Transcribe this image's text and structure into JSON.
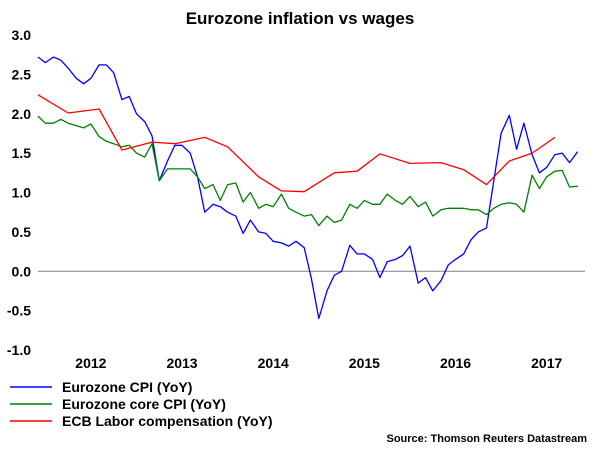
{
  "chart_data": {
    "type": "line",
    "title": "Eurozone inflation vs wages",
    "source": "Source: Thomson Reuters Datastream",
    "xlim": [
      2011.5,
      2017.5
    ],
    "ylim": [
      -1.0,
      3.0
    ],
    "yticks": [
      "3.0",
      "2.5",
      "2.0",
      "1.5",
      "1.0",
      "0.5",
      "0.0",
      "-0.5",
      "-1.0"
    ],
    "ytick_values": [
      3.0,
      2.5,
      2.0,
      1.5,
      1.0,
      0.5,
      0.0,
      -0.5,
      -1.0
    ],
    "xticks": [
      "2012",
      "2013",
      "2014",
      "2015",
      "2016",
      "2017"
    ],
    "xtick_values": [
      2012.0,
      2013.0,
      2014.0,
      2015.0,
      2016.0,
      2017.0
    ],
    "zero_line": true,
    "legend_position": "bottom-left",
    "series": [
      {
        "name": "Eurozone CPI (YoY)",
        "color": "#0000ff",
        "x": [
          2011.5,
          2011.58,
          2011.67,
          2011.75,
          2011.83,
          2011.92,
          2012.0,
          2012.08,
          2012.17,
          2012.25,
          2012.33,
          2012.42,
          2012.5,
          2012.58,
          2012.67,
          2012.75,
          2012.83,
          2012.92,
          2013.0,
          2013.08,
          2013.17,
          2013.25,
          2013.33,
          2013.42,
          2013.5,
          2013.58,
          2013.67,
          2013.75,
          2013.83,
          2013.92,
          2014.0,
          2014.08,
          2014.17,
          2014.25,
          2014.33,
          2014.42,
          2014.5,
          2014.58,
          2014.67,
          2014.75,
          2014.83,
          2014.92,
          2015.0,
          2015.08,
          2015.17,
          2015.25,
          2015.33,
          2015.42,
          2015.5,
          2015.58,
          2015.67,
          2015.75,
          2015.83,
          2015.92,
          2016.0,
          2016.08,
          2016.17,
          2016.25,
          2016.33,
          2016.42,
          2016.5,
          2016.58,
          2016.67,
          2016.75,
          2016.83,
          2016.92,
          2017.0,
          2017.08,
          2017.17,
          2017.25,
          2017.33,
          2017.42
        ],
        "values": [
          2.72,
          2.65,
          2.72,
          2.68,
          2.58,
          2.45,
          2.38,
          2.45,
          2.62,
          2.62,
          2.52,
          2.18,
          2.22,
          2.0,
          1.9,
          1.72,
          1.15,
          1.4,
          1.6,
          1.6,
          1.5,
          1.2,
          0.75,
          0.85,
          0.82,
          0.75,
          0.7,
          0.48,
          0.65,
          0.5,
          0.48,
          0.38,
          0.36,
          0.32,
          0.38,
          0.3,
          -0.1,
          -0.6,
          -0.25,
          -0.05,
          0.0,
          0.33,
          0.22,
          0.22,
          0.15,
          -0.08,
          0.12,
          0.15,
          0.2,
          0.32,
          -0.15,
          -0.08,
          -0.25,
          -0.12,
          0.08,
          0.15,
          0.22,
          0.4,
          0.5,
          0.55,
          1.15,
          1.75,
          1.98,
          1.55,
          1.88,
          1.48,
          1.25,
          1.32,
          1.48,
          1.5,
          1.38,
          1.52
        ]
      },
      {
        "name": "Eurozone core CPI (YoY)",
        "color": "#008000",
        "x": [
          2011.5,
          2011.58,
          2011.67,
          2011.75,
          2011.83,
          2011.92,
          2012.0,
          2012.08,
          2012.17,
          2012.25,
          2012.33,
          2012.42,
          2012.5,
          2012.58,
          2012.67,
          2012.75,
          2012.83,
          2012.92,
          2013.0,
          2013.08,
          2013.17,
          2013.25,
          2013.33,
          2013.42,
          2013.5,
          2013.58,
          2013.67,
          2013.75,
          2013.83,
          2013.92,
          2014.0,
          2014.08,
          2014.17,
          2014.25,
          2014.33,
          2014.42,
          2014.5,
          2014.58,
          2014.67,
          2014.75,
          2014.83,
          2014.92,
          2015.0,
          2015.08,
          2015.17,
          2015.25,
          2015.33,
          2015.42,
          2015.5,
          2015.58,
          2015.67,
          2015.75,
          2015.83,
          2015.92,
          2016.0,
          2016.08,
          2016.17,
          2016.25,
          2016.33,
          2016.42,
          2016.5,
          2016.58,
          2016.67,
          2016.75,
          2016.83,
          2016.92,
          2017.0,
          2017.08,
          2017.17,
          2017.25,
          2017.33,
          2017.42
        ],
        "values": [
          1.97,
          1.88,
          1.88,
          1.93,
          1.88,
          1.85,
          1.82,
          1.87,
          1.71,
          1.65,
          1.62,
          1.58,
          1.6,
          1.5,
          1.45,
          1.62,
          1.15,
          1.3,
          1.3,
          1.3,
          1.3,
          1.2,
          1.05,
          1.1,
          0.9,
          1.1,
          1.12,
          0.88,
          1.0,
          0.8,
          0.85,
          0.82,
          0.98,
          0.8,
          0.75,
          0.7,
          0.72,
          0.58,
          0.7,
          0.62,
          0.65,
          0.85,
          0.8,
          0.9,
          0.85,
          0.85,
          0.98,
          0.9,
          0.85,
          0.95,
          0.82,
          0.88,
          0.7,
          0.78,
          0.8,
          0.8,
          0.8,
          0.78,
          0.78,
          0.72,
          0.8,
          0.85,
          0.87,
          0.85,
          0.75,
          1.22,
          1.05,
          1.2,
          1.27,
          1.28,
          1.07,
          1.08
        ]
      },
      {
        "name": "ECB Labor compensation (YoY)",
        "color": "#ff0000",
        "x": [
          2011.5,
          2011.83,
          2012.17,
          2012.42,
          2012.75,
          2013.0,
          2013.33,
          2013.58,
          2013.92,
          2014.17,
          2014.42,
          2014.75,
          2015.0,
          2015.25,
          2015.58,
          2015.92,
          2016.17,
          2016.42,
          2016.67,
          2016.92,
          2017.17
        ],
        "values": [
          2.24,
          2.01,
          2.06,
          1.54,
          1.64,
          1.62,
          1.7,
          1.58,
          1.2,
          1.02,
          1.01,
          1.25,
          1.27,
          1.49,
          1.37,
          1.38,
          1.29,
          1.1,
          1.4,
          1.5,
          1.7
        ]
      }
    ]
  }
}
